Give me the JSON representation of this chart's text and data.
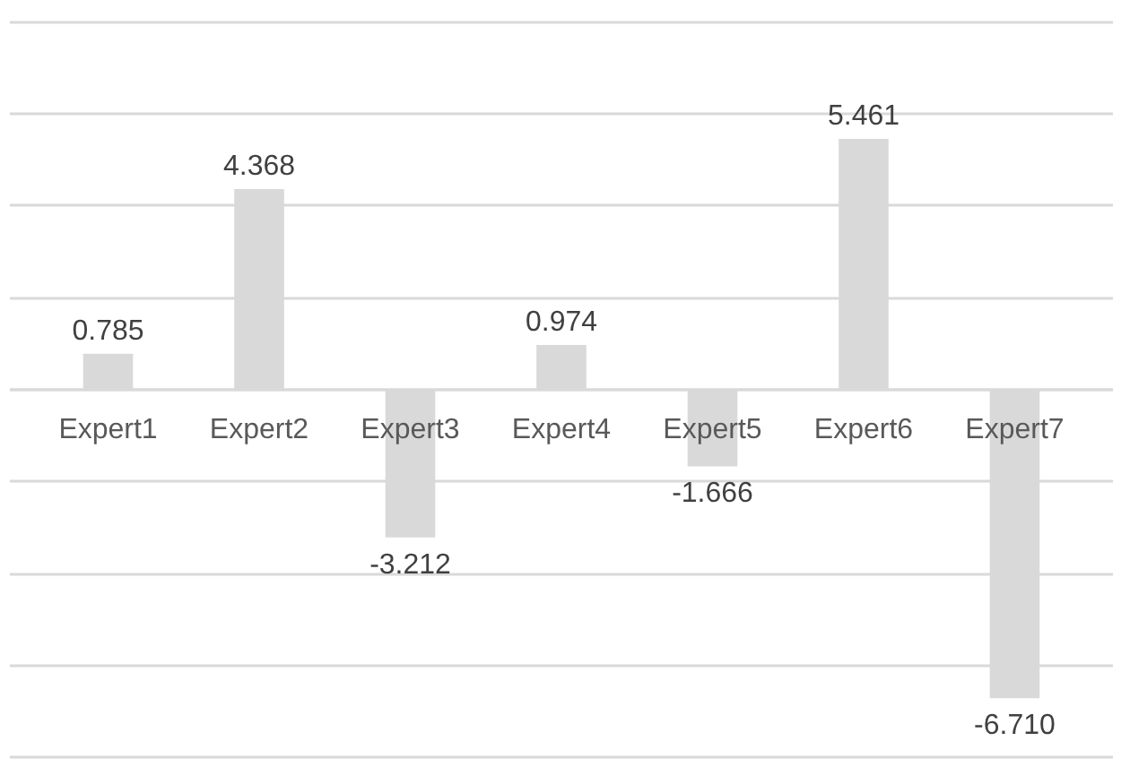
{
  "chart_data": {
    "type": "bar",
    "categories": [
      "Expert1",
      "Expert2",
      "Expert3",
      "Expert4",
      "Expert5",
      "Expert6",
      "Expert7"
    ],
    "values": [
      0.785,
      4.368,
      -3.212,
      0.974,
      -1.666,
      5.461,
      -6.71
    ],
    "value_labels": [
      "0.785",
      "4.368",
      "-3.212",
      "0.974",
      "-1.666",
      "5.461",
      "-6.710"
    ],
    "color": "#d9d9d9",
    "yticks": [
      {
        "value": -8,
        "label": null
      },
      {
        "value": -6,
        "label": null
      },
      {
        "value": -4,
        "label": null
      },
      {
        "value": -2,
        "label": null
      },
      {
        "value": 0,
        "label": null
      },
      {
        "value": 2,
        "label": null
      },
      {
        "value": 4,
        "label": null
      },
      {
        "value": 6,
        "label": null
      },
      {
        "value": 8,
        "label": null
      }
    ],
    "grid": "y",
    "tick_labels": "x"
  }
}
